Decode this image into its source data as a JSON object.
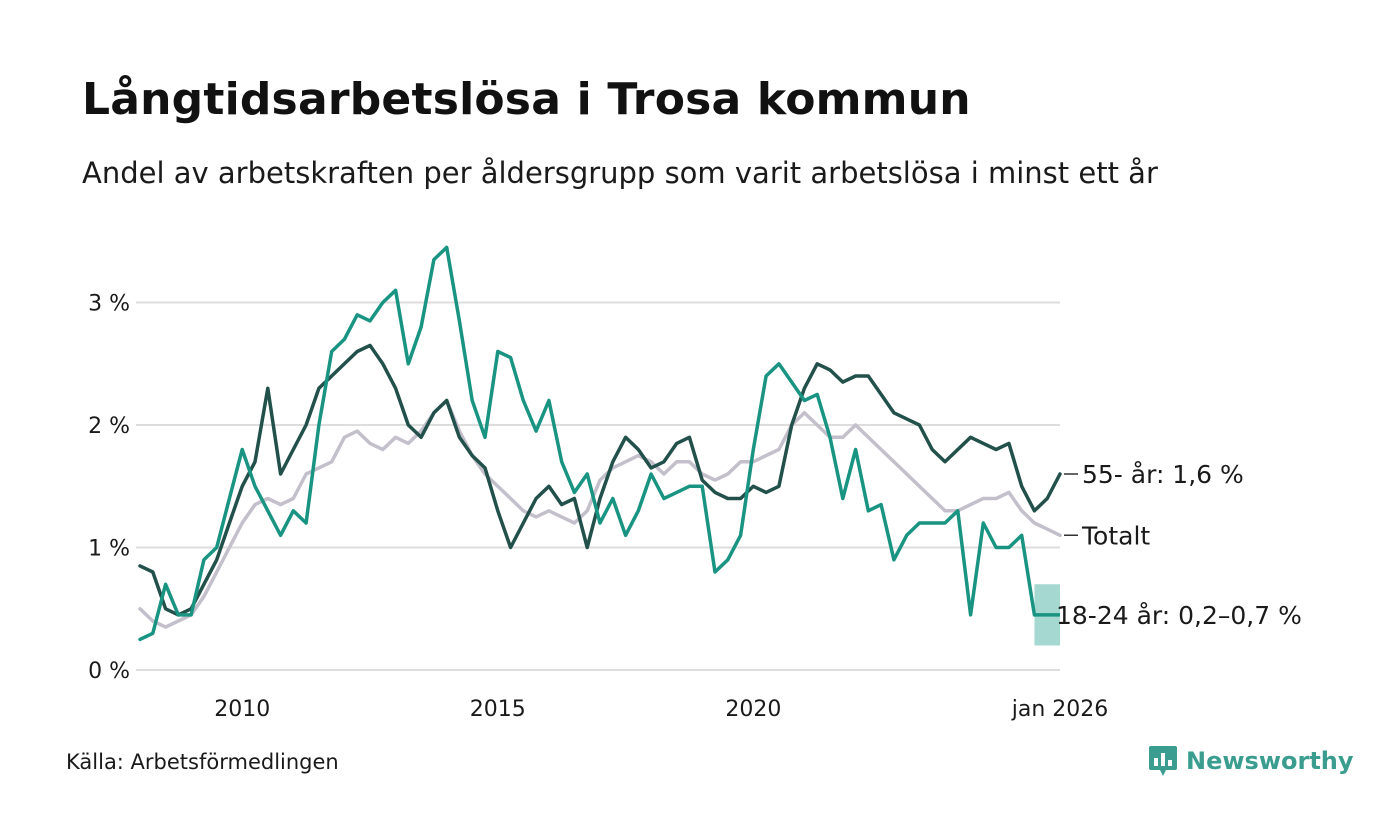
{
  "title": "Långtidsarbetslösa i Trosa kommun",
  "subtitle": "Andel av arbetskraften per åldersgrupp som varit arbetslösa i minst ett år",
  "source": "Källa: Arbetsförmedlingen",
  "brand": {
    "name": "Newsworthy",
    "icon": "newsworthy-logo-icon",
    "color": "#3a9d8f"
  },
  "chart_data": {
    "type": "line",
    "title": "Långtidsarbetslösa i Trosa kommun",
    "ylabel": "",
    "xlabel": "",
    "ylim": [
      0,
      3.6
    ],
    "xlim": [
      2008.0,
      2026.0
    ],
    "y_ticks": [
      {
        "value": 0,
        "label": "0 %"
      },
      {
        "value": 1,
        "label": "1 %"
      },
      {
        "value": 2,
        "label": "2 %"
      },
      {
        "value": 3,
        "label": "3 %"
      }
    ],
    "x_ticks": [
      {
        "value": 2010,
        "label": "2010"
      },
      {
        "value": 2015,
        "label": "2015"
      },
      {
        "value": 2020,
        "label": "2020"
      },
      {
        "value": 2026,
        "label": "jan 2026"
      }
    ],
    "grid": true,
    "series": [
      {
        "name": "Totalt",
        "label": "Totalt",
        "color": "#c3bfcb",
        "x": [
          2008.0,
          2008.25,
          2008.5,
          2008.75,
          2009.0,
          2009.25,
          2009.5,
          2009.75,
          2010.0,
          2010.25,
          2010.5,
          2010.75,
          2011.0,
          2011.25,
          2011.5,
          2011.75,
          2012.0,
          2012.25,
          2012.5,
          2012.75,
          2013.0,
          2013.25,
          2013.5,
          2013.75,
          2014.0,
          2014.25,
          2014.5,
          2014.75,
          2015.0,
          2015.25,
          2015.5,
          2015.75,
          2016.0,
          2016.25,
          2016.5,
          2016.75,
          2017.0,
          2017.25,
          2017.5,
          2017.75,
          2018.0,
          2018.25,
          2018.5,
          2018.75,
          2019.0,
          2019.25,
          2019.5,
          2019.75,
          2020.0,
          2020.25,
          2020.5,
          2020.75,
          2021.0,
          2021.25,
          2021.5,
          2021.75,
          2022.0,
          2022.25,
          2022.5,
          2022.75,
          2023.0,
          2023.25,
          2023.5,
          2023.75,
          2024.0,
          2024.25,
          2024.5,
          2024.75,
          2025.0,
          2025.25,
          2025.5,
          2025.75,
          2026.0
        ],
        "y": [
          0.5,
          0.4,
          0.35,
          0.4,
          0.45,
          0.6,
          0.8,
          1.0,
          1.2,
          1.35,
          1.4,
          1.35,
          1.4,
          1.6,
          1.65,
          1.7,
          1.9,
          1.95,
          1.85,
          1.8,
          1.9,
          1.85,
          1.95,
          2.1,
          2.2,
          1.95,
          1.75,
          1.6,
          1.5,
          1.4,
          1.3,
          1.25,
          1.3,
          1.25,
          1.2,
          1.3,
          1.55,
          1.65,
          1.7,
          1.75,
          1.7,
          1.6,
          1.7,
          1.7,
          1.6,
          1.55,
          1.6,
          1.7,
          1.7,
          1.75,
          1.8,
          2.0,
          2.1,
          2.0,
          1.9,
          1.9,
          2.0,
          1.9,
          1.8,
          1.7,
          1.6,
          1.5,
          1.4,
          1.3,
          1.3,
          1.35,
          1.4,
          1.4,
          1.45,
          1.3,
          1.2,
          1.15,
          1.1
        ],
        "last_value_label": "Totalt"
      },
      {
        "name": "55- år",
        "label": "55- år: 1,6 %",
        "color": "#22504a",
        "x": [
          2008.0,
          2008.25,
          2008.5,
          2008.75,
          2009.0,
          2009.25,
          2009.5,
          2009.75,
          2010.0,
          2010.25,
          2010.5,
          2010.75,
          2011.0,
          2011.25,
          2011.5,
          2011.75,
          2012.0,
          2012.25,
          2012.5,
          2012.75,
          2013.0,
          2013.25,
          2013.5,
          2013.75,
          2014.0,
          2014.25,
          2014.5,
          2014.75,
          2015.0,
          2015.25,
          2015.5,
          2015.75,
          2016.0,
          2016.25,
          2016.5,
          2016.75,
          2017.0,
          2017.25,
          2017.5,
          2017.75,
          2018.0,
          2018.25,
          2018.5,
          2018.75,
          2019.0,
          2019.25,
          2019.5,
          2019.75,
          2020.0,
          2020.25,
          2020.5,
          2020.75,
          2021.0,
          2021.25,
          2021.5,
          2021.75,
          2022.0,
          2022.25,
          2022.5,
          2022.75,
          2023.0,
          2023.25,
          2023.5,
          2023.75,
          2024.0,
          2024.25,
          2024.5,
          2024.75,
          2025.0,
          2025.25,
          2025.5,
          2025.75,
          2026.0
        ],
        "y": [
          0.85,
          0.8,
          0.5,
          0.45,
          0.5,
          0.7,
          0.9,
          1.2,
          1.5,
          1.7,
          2.3,
          1.6,
          1.8,
          2.0,
          2.3,
          2.4,
          2.5,
          2.6,
          2.65,
          2.5,
          2.3,
          2.0,
          1.9,
          2.1,
          2.2,
          1.9,
          1.75,
          1.65,
          1.3,
          1.0,
          1.2,
          1.4,
          1.5,
          1.35,
          1.4,
          1.0,
          1.4,
          1.7,
          1.9,
          1.8,
          1.65,
          1.7,
          1.85,
          1.9,
          1.55,
          1.45,
          1.4,
          1.4,
          1.5,
          1.45,
          1.5,
          2.0,
          2.3,
          2.5,
          2.45,
          2.35,
          2.4,
          2.4,
          2.25,
          2.1,
          2.05,
          2.0,
          1.8,
          1.7,
          1.8,
          1.9,
          1.85,
          1.8,
          1.85,
          1.5,
          1.3,
          1.4,
          1.6
        ],
        "last_value_label": "55- år: 1,6 %"
      },
      {
        "name": "18-24 år",
        "label": "18-24 år: 0,2–0,7 %",
        "color": "#1a9482",
        "x": [
          2008.0,
          2008.25,
          2008.5,
          2008.75,
          2009.0,
          2009.25,
          2009.5,
          2009.75,
          2010.0,
          2010.25,
          2010.5,
          2010.75,
          2011.0,
          2011.25,
          2011.5,
          2011.75,
          2012.0,
          2012.25,
          2012.5,
          2012.75,
          2013.0,
          2013.25,
          2013.5,
          2013.75,
          2014.0,
          2014.25,
          2014.5,
          2014.75,
          2015.0,
          2015.25,
          2015.5,
          2015.75,
          2016.0,
          2016.25,
          2016.5,
          2016.75,
          2017.0,
          2017.25,
          2017.5,
          2017.75,
          2018.0,
          2018.25,
          2018.5,
          2018.75,
          2019.0,
          2019.25,
          2019.5,
          2019.75,
          2020.0,
          2020.25,
          2020.5,
          2020.75,
          2021.0,
          2021.25,
          2021.5,
          2021.75,
          2022.0,
          2022.25,
          2022.5,
          2022.75,
          2023.0,
          2023.25,
          2023.5,
          2023.75,
          2024.0,
          2024.25,
          2024.5,
          2024.75,
          2025.0,
          2025.25,
          2025.5
        ],
        "y": [
          0.25,
          0.3,
          0.7,
          0.45,
          0.45,
          0.9,
          1.0,
          1.4,
          1.8,
          1.5,
          1.3,
          1.1,
          1.3,
          1.2,
          2.0,
          2.6,
          2.7,
          2.9,
          2.85,
          3.0,
          3.1,
          2.5,
          2.8,
          3.35,
          3.45,
          2.85,
          2.2,
          1.9,
          2.6,
          2.55,
          2.2,
          1.95,
          2.2,
          1.7,
          1.45,
          1.6,
          1.2,
          1.4,
          1.1,
          1.3,
          1.6,
          1.4,
          1.45,
          1.5,
          1.5,
          0.8,
          0.9,
          1.1,
          1.8,
          2.4,
          2.5,
          2.35,
          2.2,
          2.25,
          1.9,
          1.4,
          1.8,
          1.3,
          1.35,
          0.9,
          1.1,
          1.2,
          1.2,
          1.2,
          1.3,
          0.45,
          1.2,
          1.0,
          1.0,
          1.1,
          0.45
        ],
        "band": {
          "x": [
            2025.5,
            2026.0
          ],
          "low": 0.2,
          "high": 0.7,
          "color": "#a5d8d0"
        },
        "last_value_label": "18-24 år: 0,2–0,7 %"
      }
    ]
  }
}
